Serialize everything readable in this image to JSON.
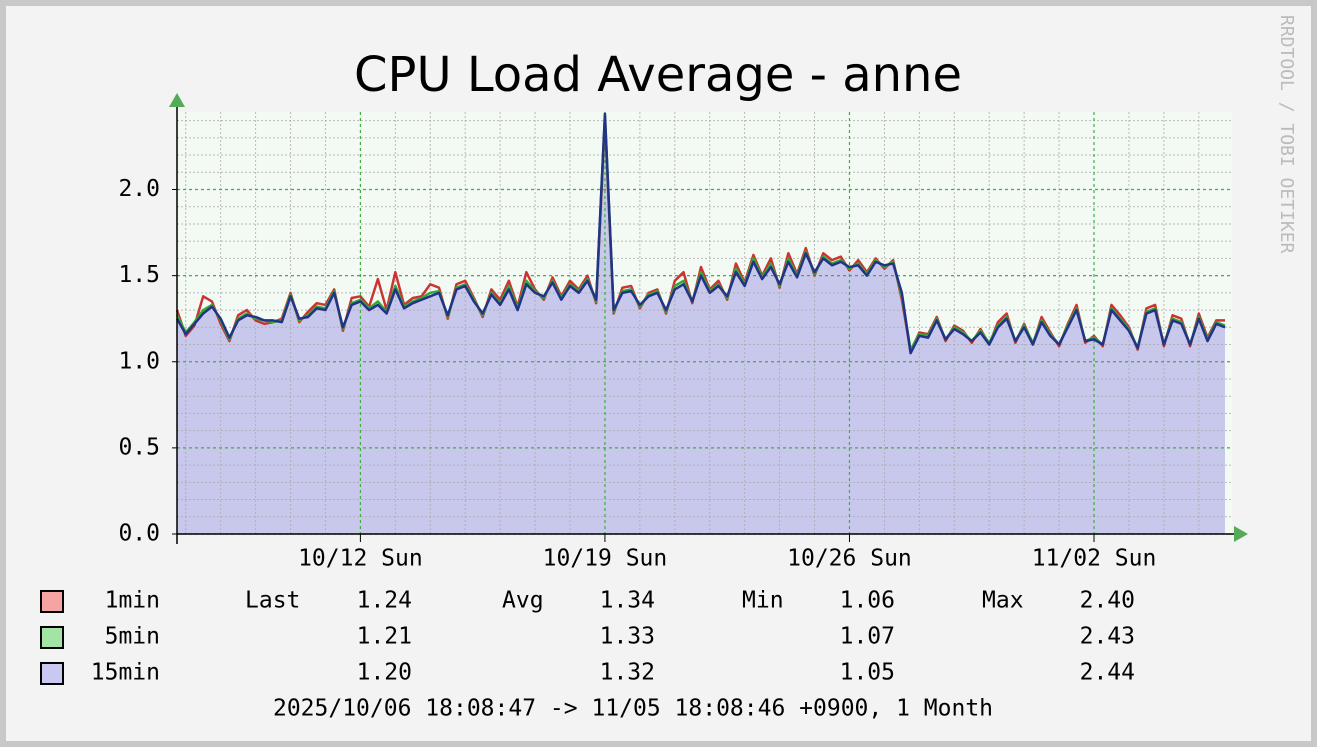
{
  "chart_data": {
    "type": "line",
    "title": "CPU Load Average - anne",
    "watermark": "RRDTOOL / TOBI OETIKER",
    "footer": "2025/10/06 18:08:47 -> 11/05 18:08:46 +0900, 1 Month",
    "categories": [
      null,
      null,
      null,
      null,
      null,
      null,
      null,
      null,
      null,
      null,
      null,
      null,
      null,
      null,
      null,
      null,
      null,
      null,
      null,
      null,
      null,
      "10/12 Sun",
      null,
      null,
      null,
      null,
      null,
      null,
      null,
      null,
      null,
      null,
      null,
      null,
      null,
      null,
      null,
      null,
      null,
      null,
      null,
      null,
      null,
      null,
      null,
      null,
      null,
      null,
      null,
      "10/19 Sun",
      null,
      null,
      null,
      null,
      null,
      null,
      null,
      null,
      null,
      null,
      null,
      null,
      null,
      null,
      null,
      null,
      null,
      null,
      null,
      null,
      null,
      null,
      null,
      null,
      null,
      null,
      null,
      "10/26 Sun",
      null,
      null,
      null,
      null,
      null,
      null,
      null,
      null,
      null,
      null,
      null,
      null,
      null,
      null,
      null,
      null,
      null,
      null,
      null,
      null,
      null,
      null,
      null,
      null,
      null,
      null,
      null,
      "11/02 Sun",
      null,
      null,
      null,
      null,
      null,
      null,
      null,
      null,
      null,
      null,
      null,
      null,
      null,
      null,
      null
    ],
    "ylim": [
      0,
      2.45
    ],
    "yticks": [
      {
        "value": 0,
        "label": "0.0"
      },
      0.5,
      {
        "value": 1,
        "label": "1.0"
      },
      1.5,
      {
        "value": 2,
        "label": "2.0"
      }
    ],
    "yminor": [
      0.1,
      0.2,
      0.3,
      0.4,
      0.6,
      0.7,
      0.8,
      0.9,
      1.1,
      1.2,
      1.3,
      1.4,
      1.6,
      1.7,
      1.8,
      1.9,
      2.1,
      2.2,
      2.3,
      2.4
    ],
    "grid": true,
    "stat_labels": [
      "Last",
      "Avg",
      "Min",
      "Max"
    ],
    "series": [
      {
        "name": "1min",
        "color": "#cc3333",
        "swatch": "#f5a3a3",
        "stats": [
          "1.24",
          "1.34",
          "1.06",
          "2.40"
        ],
        "values": [
          1.3,
          1.15,
          1.21,
          1.38,
          1.35,
          1.22,
          1.12,
          1.27,
          1.3,
          1.24,
          1.22,
          1.23,
          1.25,
          1.4,
          1.23,
          1.29,
          1.34,
          1.33,
          1.42,
          1.18,
          1.37,
          1.38,
          1.32,
          1.48,
          1.3,
          1.52,
          1.33,
          1.37,
          1.38,
          1.45,
          1.43,
          1.25,
          1.45,
          1.47,
          1.37,
          1.26,
          1.42,
          1.36,
          1.47,
          1.32,
          1.52,
          1.42,
          1.36,
          1.49,
          1.38,
          1.47,
          1.42,
          1.5,
          1.34,
          2.4,
          1.28,
          1.43,
          1.44,
          1.31,
          1.4,
          1.42,
          1.28,
          1.47,
          1.52,
          1.34,
          1.55,
          1.42,
          1.47,
          1.36,
          1.57,
          1.46,
          1.62,
          1.5,
          1.6,
          1.43,
          1.63,
          1.51,
          1.66,
          1.5,
          1.63,
          1.59,
          1.61,
          1.53,
          1.59,
          1.52,
          1.6,
          1.54,
          1.59,
          1.36,
          1.06,
          1.17,
          1.16,
          1.26,
          1.12,
          1.21,
          1.18,
          1.11,
          1.19,
          1.1,
          1.23,
          1.28,
          1.11,
          1.22,
          1.1,
          1.26,
          1.17,
          1.09,
          1.22,
          1.33,
          1.11,
          1.15,
          1.09,
          1.33,
          1.27,
          1.2,
          1.07,
          1.31,
          1.33,
          1.09,
          1.27,
          1.25,
          1.09,
          1.28,
          1.14,
          1.24,
          1.24
        ]
      },
      {
        "name": "5min",
        "color": "#33aa33",
        "swatch": "#a3e3a3",
        "stats": [
          "1.21",
          "1.33",
          "1.07",
          "2.43"
        ],
        "values": [
          1.27,
          1.17,
          1.23,
          1.3,
          1.33,
          1.24,
          1.13,
          1.25,
          1.28,
          1.25,
          1.24,
          1.23,
          1.24,
          1.39,
          1.24,
          1.27,
          1.32,
          1.31,
          1.41,
          1.19,
          1.34,
          1.36,
          1.31,
          1.35,
          1.29,
          1.44,
          1.32,
          1.35,
          1.37,
          1.4,
          1.41,
          1.26,
          1.43,
          1.45,
          1.36,
          1.27,
          1.4,
          1.34,
          1.44,
          1.31,
          1.47,
          1.41,
          1.37,
          1.47,
          1.37,
          1.45,
          1.41,
          1.48,
          1.35,
          2.43,
          1.29,
          1.41,
          1.42,
          1.32,
          1.39,
          1.41,
          1.29,
          1.44,
          1.47,
          1.35,
          1.52,
          1.41,
          1.45,
          1.37,
          1.54,
          1.45,
          1.6,
          1.49,
          1.57,
          1.44,
          1.6,
          1.5,
          1.64,
          1.51,
          1.61,
          1.57,
          1.59,
          1.54,
          1.57,
          1.51,
          1.59,
          1.55,
          1.58,
          1.38,
          1.07,
          1.16,
          1.15,
          1.25,
          1.13,
          1.2,
          1.17,
          1.12,
          1.18,
          1.11,
          1.21,
          1.26,
          1.12,
          1.21,
          1.11,
          1.24,
          1.16,
          1.1,
          1.21,
          1.31,
          1.12,
          1.14,
          1.1,
          1.31,
          1.25,
          1.19,
          1.08,
          1.29,
          1.31,
          1.1,
          1.25,
          1.23,
          1.1,
          1.26,
          1.13,
          1.23,
          1.21
        ]
      },
      {
        "name": "15min",
        "color": "#223388",
        "swatch": "#c8c8f0",
        "area": "#c8c8ec",
        "stats": [
          "1.20",
          "1.32",
          "1.05",
          "2.44"
        ],
        "values": [
          1.25,
          1.16,
          1.22,
          1.28,
          1.32,
          1.25,
          1.14,
          1.24,
          1.27,
          1.26,
          1.24,
          1.24,
          1.23,
          1.38,
          1.25,
          1.26,
          1.31,
          1.3,
          1.4,
          1.2,
          1.33,
          1.35,
          1.3,
          1.33,
          1.28,
          1.42,
          1.31,
          1.34,
          1.36,
          1.38,
          1.4,
          1.27,
          1.42,
          1.44,
          1.35,
          1.28,
          1.39,
          1.33,
          1.42,
          1.3,
          1.45,
          1.4,
          1.38,
          1.46,
          1.36,
          1.44,
          1.4,
          1.47,
          1.36,
          2.44,
          1.3,
          1.4,
          1.41,
          1.33,
          1.38,
          1.4,
          1.3,
          1.42,
          1.45,
          1.35,
          1.5,
          1.4,
          1.44,
          1.38,
          1.52,
          1.44,
          1.58,
          1.48,
          1.55,
          1.45,
          1.58,
          1.49,
          1.63,
          1.52,
          1.6,
          1.56,
          1.58,
          1.55,
          1.56,
          1.5,
          1.58,
          1.56,
          1.57,
          1.4,
          1.05,
          1.15,
          1.14,
          1.24,
          1.13,
          1.19,
          1.16,
          1.12,
          1.17,
          1.1,
          1.2,
          1.25,
          1.12,
          1.2,
          1.1,
          1.23,
          1.15,
          1.1,
          1.2,
          1.3,
          1.12,
          1.13,
          1.1,
          1.3,
          1.24,
          1.18,
          1.08,
          1.28,
          1.3,
          1.1,
          1.24,
          1.22,
          1.1,
          1.25,
          1.12,
          1.22,
          1.2
        ]
      }
    ]
  }
}
